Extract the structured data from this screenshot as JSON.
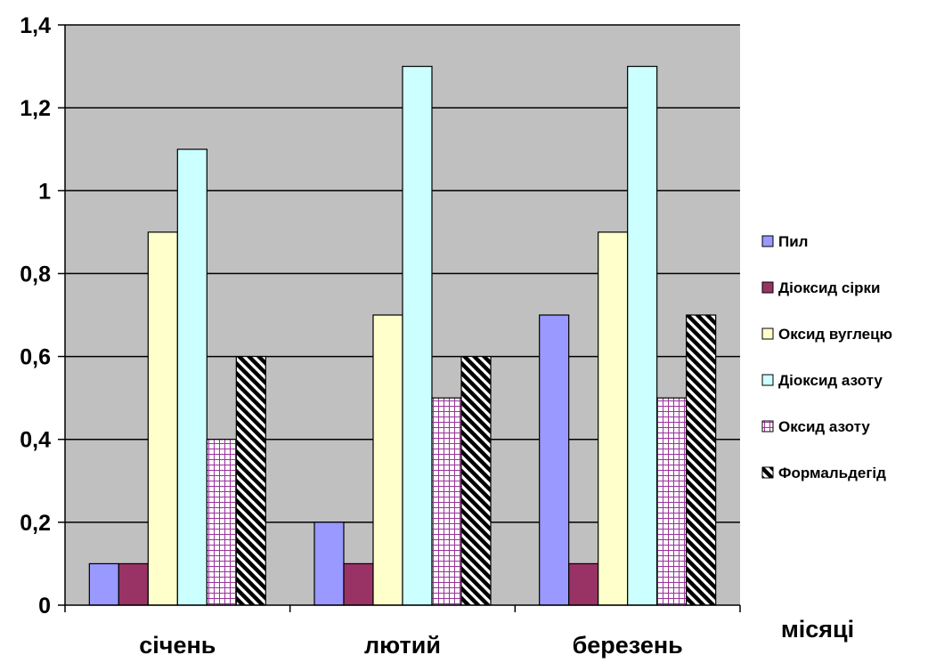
{
  "chart_data": {
    "type": "bar",
    "title": "",
    "xlabel": "місяці",
    "ylabel": "",
    "categories": [
      "січень",
      "лютий",
      "березень"
    ],
    "ylim": [
      0,
      1.4
    ],
    "yticks": [
      "0",
      "0,2",
      "0,4",
      "0,6",
      "0,8",
      "1",
      "1,2",
      "1,4"
    ],
    "grid": true,
    "legend_position": "right",
    "series": [
      {
        "name": "Пил",
        "values": [
          0.1,
          0.2,
          0.7
        ],
        "color": "#9999ff",
        "pattern": "solid"
      },
      {
        "name": "Діоксид сірки",
        "values": [
          0.1,
          0.1,
          0.1
        ],
        "color": "#993366",
        "pattern": "solid"
      },
      {
        "name": "Оксид вуглецю",
        "values": [
          0.9,
          0.7,
          0.9
        ],
        "color": "#ffffcc",
        "pattern": "solid"
      },
      {
        "name": "Діоксид азоту",
        "values": [
          1.1,
          1.3,
          1.3
        ],
        "color": "#ccffff",
        "pattern": "solid"
      },
      {
        "name": "Оксид азоту",
        "values": [
          0.4,
          0.5,
          0.5
        ],
        "color": "#993399",
        "pattern": "grid"
      },
      {
        "name": "Формальдегід",
        "values": [
          0.6,
          0.6,
          0.7
        ],
        "color": "#000000",
        "pattern": "diagonal"
      }
    ],
    "plot_background": "#c0c0c0"
  }
}
